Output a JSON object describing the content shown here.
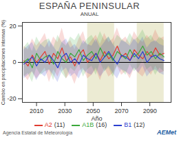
{
  "chart_data": {
    "type": "line",
    "title": "ESPAÑA PENINSULAR",
    "subtitle": "ANUAL",
    "x_label": "Año",
    "y_label": "Cambio en precipitaciones intensas (%)",
    "source": "Agencia Estatal de Meteorología",
    "logo": "AEMet",
    "xlim": [
      2000,
      2105
    ],
    "xticks": [
      2010,
      2030,
      2050,
      2070,
      2090
    ],
    "ylim": [
      -22,
      22
    ],
    "yticks": [
      -20,
      0,
      20
    ],
    "shaded_periods": [
      [
        2046,
        2065
      ],
      [
        2081,
        2100
      ]
    ],
    "x": [
      2001,
      2004,
      2007,
      2010,
      2013,
      2016,
      2019,
      2022,
      2025,
      2028,
      2031,
      2034,
      2037,
      2040,
      2043,
      2046,
      2049,
      2052,
      2055,
      2058,
      2061,
      2064,
      2067,
      2070,
      2073,
      2076,
      2079,
      2082,
      2085,
      2088,
      2091,
      2094,
      2097,
      2100
    ],
    "series": [
      {
        "name": "A2",
        "color": "#e03c31",
        "count": {
          "value": 11,
          "label": "(11)"
        },
        "values": [
          1,
          -2,
          4,
          0,
          3,
          6,
          -1,
          5,
          2,
          8,
          1,
          3,
          -2,
          4,
          7,
          0,
          3,
          5,
          1,
          6,
          2,
          4,
          9,
          3,
          5,
          1,
          7,
          4,
          2,
          6,
          3,
          8,
          4,
          5
        ],
        "lower": [
          -7,
          -10,
          -5,
          -9,
          -6,
          -3,
          -11,
          -4,
          -8,
          -2,
          -9,
          -6,
          -12,
          -5,
          -3,
          -9,
          -7,
          -4,
          -10,
          -3,
          -8,
          -6,
          -2,
          -7,
          -5,
          -9,
          -3,
          -6,
          -8,
          -4,
          -7,
          -2,
          -6,
          -5
        ],
        "upper": [
          9,
          7,
          13,
          9,
          12,
          16,
          8,
          14,
          11,
          19,
          10,
          12,
          7,
          13,
          17,
          9,
          12,
          15,
          10,
          16,
          11,
          13,
          19,
          12,
          14,
          10,
          17,
          13,
          11,
          15,
          12,
          18,
          13,
          14
        ]
      },
      {
        "name": "A1B",
        "color": "#3aa83a",
        "count": {
          "value": 16,
          "label": "(16)"
        },
        "values": [
          0,
          2,
          -3,
          5,
          1,
          3,
          4,
          -1,
          6,
          2,
          0,
          5,
          3,
          7,
          1,
          4,
          6,
          2,
          8,
          3,
          5,
          1,
          6,
          4,
          2,
          7,
          3,
          5,
          9,
          4,
          6,
          2,
          5,
          3
        ],
        "lower": [
          -8,
          -6,
          -11,
          -3,
          -7,
          -5,
          -4,
          -10,
          -2,
          -6,
          -9,
          -3,
          -5,
          -1,
          -8,
          -4,
          -2,
          -7,
          0,
          -5,
          -3,
          -8,
          -2,
          -4,
          -7,
          -1,
          -5,
          -3,
          1,
          -4,
          -2,
          -7,
          -3,
          -5
        ],
        "upper": [
          8,
          11,
          6,
          14,
          10,
          12,
          13,
          8,
          15,
          11,
          9,
          14,
          12,
          16,
          10,
          13,
          15,
          11,
          17,
          12,
          14,
          10,
          15,
          13,
          11,
          16,
          12,
          14,
          18,
          13,
          15,
          11,
          14,
          12
        ]
      },
      {
        "name": "B1",
        "color": "#2a3fd0",
        "count": {
          "value": 12,
          "label": "(12)"
        },
        "values": [
          -1,
          1,
          3,
          -2,
          2,
          0,
          4,
          1,
          -3,
          3,
          5,
          0,
          2,
          -1,
          4,
          2,
          1,
          5,
          0,
          3,
          6,
          2,
          -1,
          4,
          3,
          1,
          5,
          2,
          6,
          0,
          3,
          4,
          2,
          1
        ],
        "lower": [
          -9,
          -7,
          -5,
          -10,
          -6,
          -8,
          -4,
          -7,
          -11,
          -5,
          -3,
          -8,
          -6,
          -9,
          -4,
          -6,
          -7,
          -3,
          -8,
          -5,
          -2,
          -6,
          -9,
          -4,
          -5,
          -7,
          -3,
          -6,
          -2,
          -8,
          -5,
          -4,
          -6,
          -7
        ],
        "upper": [
          7,
          9,
          11,
          6,
          10,
          8,
          12,
          9,
          5,
          11,
          13,
          8,
          10,
          7,
          12,
          10,
          9,
          13,
          8,
          11,
          14,
          10,
          7,
          12,
          11,
          9,
          13,
          10,
          14,
          8,
          11,
          12,
          10,
          9
        ]
      }
    ]
  }
}
